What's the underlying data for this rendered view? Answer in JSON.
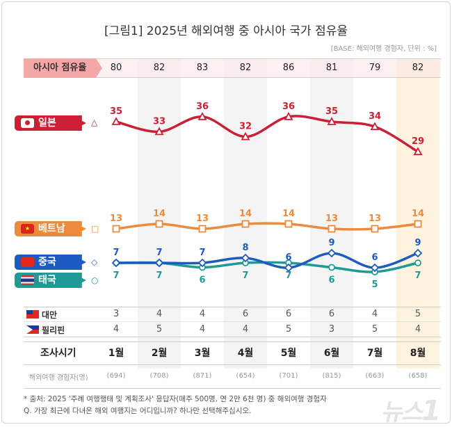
{
  "title": "[그림1] 2025년 해외여행 중 아시아 국가 점유율",
  "base_note": "[BASE: 해외여행 경험자, 단위 : %]",
  "share_label": "아시아 점유율",
  "share_values": [
    "80",
    "82",
    "83",
    "82",
    "86",
    "81",
    "79",
    "82"
  ],
  "chart_data": {
    "type": "line",
    "categories": [
      "1월",
      "2월",
      "3월",
      "4월",
      "5월",
      "6월",
      "7월",
      "8월"
    ],
    "series": [
      {
        "name": "일본",
        "values": [
          35,
          33,
          36,
          32,
          36,
          35,
          34,
          29
        ],
        "color": "#cc1f36",
        "marker": "triangle"
      },
      {
        "name": "베트남",
        "values": [
          13,
          14,
          13,
          14,
          14,
          13,
          13,
          14
        ],
        "color": "#ee8a3c",
        "marker": "square"
      },
      {
        "name": "중국",
        "values": [
          7,
          7,
          7,
          8,
          6,
          9,
          6,
          9
        ],
        "color": "#1c5bbf",
        "marker": "diamond"
      },
      {
        "name": "태국",
        "values": [
          7,
          7,
          6,
          7,
          7,
          6,
          5,
          7
        ],
        "color": "#1f9a96",
        "marker": "circle"
      }
    ],
    "table_rows": [
      {
        "name": "대만",
        "values": [
          3,
          4,
          4,
          6,
          6,
          6,
          4,
          5
        ]
      },
      {
        "name": "필리핀",
        "values": [
          4,
          5,
          4,
          4,
          5,
          3,
          5,
          4
        ]
      }
    ]
  },
  "period_label": "조사시기",
  "respondents_label": "해외여행 경험자(명)",
  "respondents": [
    "(694)",
    "(708)",
    "(871)",
    "(654)",
    "(701)",
    "(815)",
    "(663)",
    "(658)"
  ],
  "notes": [
    "* 출처: 2025 '주례 여행행태 및 계획조사' 응답자(매주 500명, 연 2만 6천 명) 중 해외여행 경험자",
    "Q. 가장 최근에 다녀온 해외 여행지는 어디입니까? 하나만 선택해주십시오."
  ],
  "logo": "뉴스1"
}
